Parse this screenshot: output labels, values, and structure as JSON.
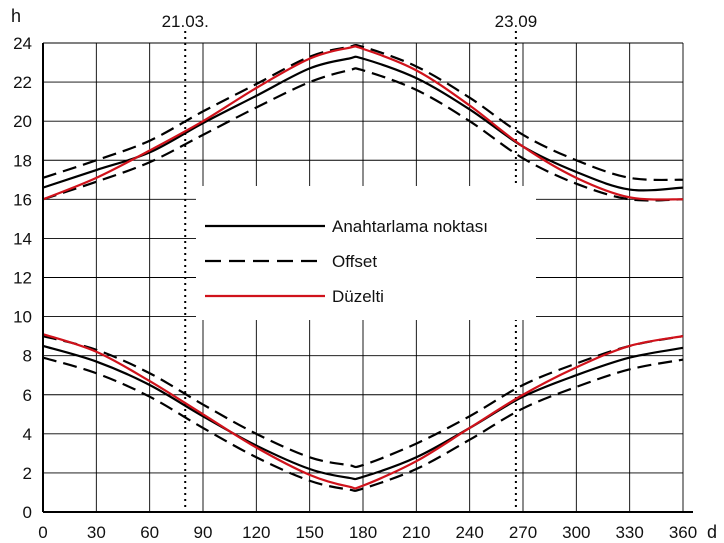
{
  "chart_data": {
    "type": "line",
    "xlabel": "d",
    "ylabel": "h",
    "xlim": [
      0,
      360
    ],
    "ylim": [
      0,
      24
    ],
    "x_ticks": [
      "0",
      "30",
      "60",
      "90",
      "120",
      "150",
      "180",
      "210",
      "240",
      "270",
      "300",
      "330",
      "360"
    ],
    "y_ticks": [
      "0",
      "2",
      "4",
      "6",
      "8",
      "10",
      "12",
      "14",
      "16",
      "18",
      "20",
      "22",
      "24"
    ],
    "grid": true,
    "legend_position": "center-left",
    "annotations": [
      {
        "label": "21.03.",
        "x": 80
      },
      {
        "label": "23.09",
        "x": 266
      }
    ],
    "series": [
      {
        "name": "Anahtarlama noktası",
        "style": "solid",
        "color": "#000000",
        "x": [
          0,
          30,
          60,
          90,
          120,
          150,
          172,
          180,
          210,
          240,
          270,
          300,
          330,
          360
        ],
        "y": [
          16.6,
          17.5,
          18.4,
          19.9,
          21.3,
          22.7,
          23.2,
          23.2,
          22.2,
          20.6,
          18.7,
          17.4,
          16.5,
          16.6
        ]
      },
      {
        "name": "Anahtarlama noktası",
        "style": "solid",
        "color": "#000000",
        "x": [
          0,
          30,
          60,
          90,
          120,
          150,
          172,
          180,
          210,
          240,
          270,
          300,
          330,
          360
        ],
        "y": [
          8.5,
          7.7,
          6.5,
          4.9,
          3.4,
          2.2,
          1.75,
          1.8,
          2.8,
          4.3,
          5.9,
          7.0,
          7.9,
          8.4
        ]
      },
      {
        "name": "Offset",
        "style": "dashed",
        "color": "#000000",
        "x": [
          0,
          30,
          60,
          90,
          120,
          150,
          172,
          180,
          210,
          240,
          270,
          300,
          330,
          360
        ],
        "y": [
          17.1,
          18.0,
          19.0,
          20.5,
          21.9,
          23.3,
          23.8,
          23.8,
          22.8,
          21.2,
          19.3,
          18.0,
          17.1,
          17.0
        ]
      },
      {
        "name": "Offset",
        "style": "dashed",
        "color": "#000000",
        "x": [
          0,
          30,
          60,
          90,
          120,
          150,
          172,
          180,
          210,
          240,
          270,
          300,
          330,
          360
        ],
        "y": [
          16.0,
          16.9,
          17.9,
          19.3,
          20.7,
          22.0,
          22.6,
          22.6,
          21.6,
          20.0,
          18.1,
          16.8,
          16.0,
          16.0
        ]
      },
      {
        "name": "Offset",
        "style": "dashed",
        "color": "#000000",
        "x": [
          0,
          30,
          60,
          90,
          120,
          150,
          172,
          180,
          210,
          240,
          270,
          300,
          330,
          360
        ],
        "y": [
          9.0,
          8.3,
          7.1,
          5.5,
          4.0,
          2.8,
          2.4,
          2.4,
          3.5,
          4.9,
          6.5,
          7.6,
          8.5,
          9.0
        ]
      },
      {
        "name": "Offset",
        "style": "dashed",
        "color": "#000000",
        "x": [
          0,
          30,
          60,
          90,
          120,
          150,
          172,
          180,
          210,
          240,
          270,
          300,
          330,
          360
        ],
        "y": [
          7.9,
          7.1,
          5.9,
          4.3,
          2.8,
          1.6,
          1.15,
          1.2,
          2.2,
          3.7,
          5.3,
          6.4,
          7.3,
          7.8
        ]
      },
      {
        "name": "Düzelti",
        "style": "solid",
        "color": "#d0121b",
        "x": [
          0,
          30,
          60,
          90,
          120,
          150,
          172,
          180,
          210,
          240,
          270,
          300,
          330,
          360
        ],
        "y": [
          16.0,
          17.1,
          18.5,
          20.0,
          21.7,
          23.2,
          23.75,
          23.7,
          22.6,
          20.8,
          18.7,
          17.1,
          16.1,
          16.0
        ]
      },
      {
        "name": "Düzelti",
        "style": "solid",
        "color": "#d0121b",
        "x": [
          0,
          30,
          60,
          90,
          120,
          150,
          172,
          180,
          210,
          240,
          270,
          300,
          330,
          360
        ],
        "y": [
          9.1,
          8.2,
          6.7,
          5.0,
          3.3,
          1.9,
          1.3,
          1.35,
          2.6,
          4.3,
          6.0,
          7.4,
          8.5,
          9.0
        ]
      }
    ],
    "legend": [
      {
        "label": "Anahtarlama noktası",
        "style": "solid",
        "color": "#000000"
      },
      {
        "label": "Offset",
        "style": "dashed",
        "color": "#000000"
      },
      {
        "label": "Düzelti",
        "style": "solid",
        "color": "#d0121b"
      }
    ]
  }
}
